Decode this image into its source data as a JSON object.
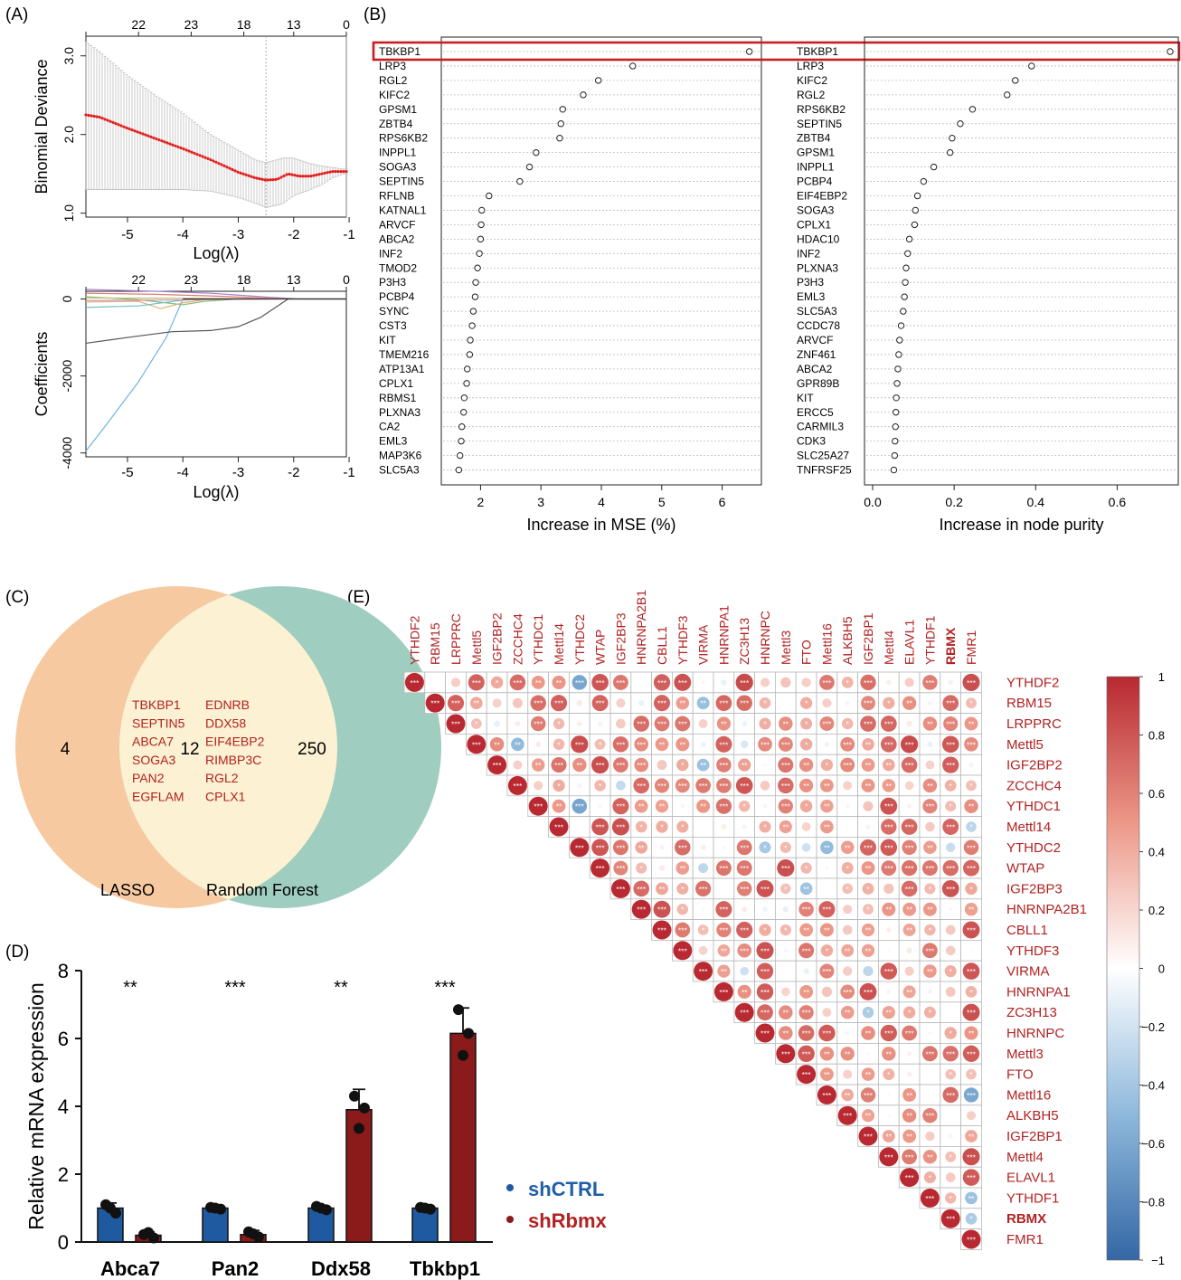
{
  "panel_labels": {
    "A": "(A)",
    "B": "(B)",
    "C": "(C)",
    "D": "(D)",
    "E": "(E)"
  },
  "colors": {
    "red": "#b22222",
    "blue": "#1f5fa6",
    "darkred": "#8b1a1a",
    "barblue": "#1f5aa0",
    "orange": "#f7c9a1",
    "green": "#9fcdbf",
    "overlap": "#fcf1d2",
    "gridgray": "#bbbbbb"
  },
  "chart_data": [
    {
      "id": "A1",
      "type": "line",
      "xlabel": "Log(λ)",
      "ylabel": "Binomial Deviance",
      "xlim": [
        -5.75,
        -1.05
      ],
      "ylim": [
        0.95,
        3.25
      ],
      "x_ticks": [
        "-5",
        "-4",
        "-3",
        "-2",
        "-1"
      ],
      "y_ticks": [
        "1.0",
        "2.0",
        "3.0"
      ],
      "top_ticks": [
        {
          "x": -5.75,
          "label": "22"
        },
        {
          "x": -4.8,
          "label": "22"
        },
        {
          "x": -3.85,
          "label": "23"
        },
        {
          "x": -2.9,
          "label": "18"
        },
        {
          "x": -2.0,
          "label": "13"
        },
        {
          "x": -1.05,
          "label": "0"
        }
      ],
      "vlines": [
        -2.5,
        -1.05
      ],
      "curve": [
        [
          -5.75,
          2.25
        ],
        [
          -5.5,
          2.22
        ],
        [
          -5.0,
          2.08
        ],
        [
          -4.5,
          1.95
        ],
        [
          -4.0,
          1.82
        ],
        [
          -3.5,
          1.68
        ],
        [
          -3.0,
          1.52
        ],
        [
          -2.7,
          1.45
        ],
        [
          -2.5,
          1.42
        ],
        [
          -2.3,
          1.43
        ],
        [
          -2.1,
          1.5
        ],
        [
          -1.9,
          1.47
        ],
        [
          -1.7,
          1.47
        ],
        [
          -1.5,
          1.5
        ],
        [
          -1.3,
          1.53
        ],
        [
          -1.1,
          1.53
        ]
      ],
      "upper": [
        [
          -5.75,
          3.18
        ],
        [
          -5.5,
          3.05
        ],
        [
          -5.0,
          2.75
        ],
        [
          -4.5,
          2.5
        ],
        [
          -4.0,
          2.27
        ],
        [
          -3.5,
          2.0
        ],
        [
          -3.0,
          1.8
        ],
        [
          -2.7,
          1.68
        ],
        [
          -2.5,
          1.64
        ],
        [
          -2.2,
          1.7
        ],
        [
          -2.0,
          1.7
        ],
        [
          -1.7,
          1.63
        ],
        [
          -1.5,
          1.6
        ],
        [
          -1.3,
          1.58
        ],
        [
          -1.1,
          1.56
        ]
      ],
      "lower": [
        [
          -5.75,
          1.3
        ],
        [
          -5.5,
          1.3
        ],
        [
          -5.0,
          1.3
        ],
        [
          -4.5,
          1.3
        ],
        [
          -4.0,
          1.3
        ],
        [
          -3.5,
          1.28
        ],
        [
          -3.0,
          1.2
        ],
        [
          -2.7,
          1.13
        ],
        [
          -2.5,
          1.07
        ],
        [
          -2.2,
          1.12
        ],
        [
          -2.0,
          1.22
        ],
        [
          -1.7,
          1.3
        ],
        [
          -1.5,
          1.36
        ],
        [
          -1.3,
          1.45
        ],
        [
          -1.1,
          1.5
        ]
      ]
    },
    {
      "id": "A2",
      "type": "line",
      "xlabel": "Log(λ)",
      "ylabel": "Coefficients",
      "xlim": [
        -5.75,
        -1.05
      ],
      "ylim": [
        -4100,
        200
      ],
      "x_ticks": [
        "-5",
        "-4",
        "-3",
        "-2",
        "-1"
      ],
      "y_ticks": [
        "0",
        "-2000",
        "-4000"
      ],
      "top_ticks": [
        {
          "x": -5.75,
          "label": "22"
        },
        {
          "x": -4.8,
          "label": "22"
        },
        {
          "x": -3.85,
          "label": "23"
        },
        {
          "x": -2.9,
          "label": "18"
        },
        {
          "x": -2.0,
          "label": "13"
        },
        {
          "x": -1.05,
          "label": "0"
        }
      ],
      "paths": [
        {
          "color": "#6cb4e0",
          "points": [
            [
              -5.75,
              -3950
            ],
            [
              -5.4,
              -3300
            ],
            [
              -4.8,
              -2150
            ],
            [
              -4.3,
              -1000
            ],
            [
              -4.0,
              0
            ]
          ]
        },
        {
          "color": "#555555",
          "points": [
            [
              -5.75,
              -1150
            ],
            [
              -5.0,
              -1000
            ],
            [
              -4.2,
              -850
            ],
            [
              -3.5,
              -820
            ],
            [
              -3.0,
              -720
            ],
            [
              -2.6,
              -480
            ],
            [
              -2.1,
              0
            ],
            [
              -1.05,
              0
            ]
          ]
        },
        {
          "color": "#a87fd0",
          "points": [
            [
              -5.75,
              250
            ],
            [
              -4.5,
              200
            ],
            [
              -3.5,
              150
            ],
            [
              -2.5,
              50
            ],
            [
              -1.9,
              0
            ],
            [
              -1.05,
              0
            ]
          ]
        },
        {
          "color": "#e07a7a",
          "points": [
            [
              -5.75,
              150
            ],
            [
              -4.5,
              120
            ],
            [
              -3.5,
              80
            ],
            [
              -2.5,
              20
            ],
            [
              -2.0,
              0
            ]
          ]
        },
        {
          "color": "#7fc07f",
          "points": [
            [
              -5.75,
              60
            ],
            [
              -4.8,
              -20
            ],
            [
              -4.0,
              -150
            ],
            [
              -3.6,
              -60
            ],
            [
              -3.0,
              0
            ]
          ]
        },
        {
          "color": "#e0b070",
          "points": [
            [
              -5.75,
              -80
            ],
            [
              -4.8,
              -60
            ],
            [
              -4.4,
              -250
            ],
            [
              -4.0,
              -100
            ],
            [
              -3.5,
              0
            ]
          ]
        },
        {
          "color": "#70c0c0",
          "points": [
            [
              -5.75,
              -220
            ],
            [
              -4.8,
              -180
            ],
            [
              -4.0,
              -30
            ],
            [
              -3.5,
              0
            ]
          ]
        },
        {
          "color": "#c0c060",
          "points": [
            [
              -5.75,
              30
            ],
            [
              -4.5,
              20
            ],
            [
              -3.0,
              10
            ],
            [
              -2.2,
              0
            ]
          ]
        },
        {
          "color": "#d090c0",
          "points": [
            [
              -5.75,
              -40
            ],
            [
              -4.5,
              -30
            ],
            [
              -3.0,
              -10
            ],
            [
              -2.3,
              0
            ]
          ]
        }
      ]
    },
    {
      "id": "B1",
      "type": "scatter",
      "xlabel": "Increase in MSE (%)",
      "xlim": [
        1.35,
        6.65
      ],
      "x_ticks": [
        2,
        3,
        4,
        5,
        6
      ],
      "categories": [
        "TBKBP1",
        "LRP3",
        "RGL2",
        "KIFC2",
        "GPSM1",
        "ZBTB4",
        "RPS6KB2",
        "INPPL1",
        "SOGA3",
        "SEPTIN5",
        "RFLNB",
        "KATNAL1",
        "ARVCF",
        "ABCA2",
        "INF2",
        "TMOD2",
        "P3H3",
        "PCBP4",
        "SYNC",
        "CST3",
        "KIT",
        "TMEM216",
        "ATP13A1",
        "CPLX1",
        "RBMS1",
        "PLXNA3",
        "CA2",
        "EML3",
        "MAP3K6",
        "SLC5A3"
      ],
      "values": [
        6.45,
        4.52,
        3.95,
        3.7,
        3.36,
        3.33,
        3.31,
        2.92,
        2.81,
        2.65,
        2.14,
        2.02,
        2.01,
        2.0,
        1.98,
        1.95,
        1.92,
        1.91,
        1.88,
        1.86,
        1.83,
        1.82,
        1.78,
        1.77,
        1.73,
        1.72,
        1.69,
        1.68,
        1.66,
        1.64
      ]
    },
    {
      "id": "B2",
      "type": "scatter",
      "xlabel": "Increase in node purity",
      "xlim": [
        -0.02,
        0.75
      ],
      "x_ticks": [
        "0.0",
        "0.2",
        "0.4",
        "0.6"
      ],
      "x_tick_values": [
        0,
        0.2,
        0.4,
        0.6
      ],
      "categories": [
        "TBKBP1",
        "LRP3",
        "KIFC2",
        "RGL2",
        "RPS6KB2",
        "SEPTIN5",
        "ZBTB4",
        "GPSM1",
        "INPPL1",
        "PCBP4",
        "EIF4EBP2",
        "SOGA3",
        "CPLX1",
        "HDAC10",
        "INF2",
        "PLXNA3",
        "P3H3",
        "EML3",
        "SLC5A3",
        "CCDC78",
        "ARVCF",
        "ZNF461",
        "ABCA2",
        "GPR89B",
        "KIT",
        "ERCC5",
        "CARMIL3",
        "CDK3",
        "SLC25A27",
        "TNFRSF25"
      ],
      "values": [
        0.73,
        0.39,
        0.35,
        0.33,
        0.245,
        0.215,
        0.195,
        0.19,
        0.15,
        0.125,
        0.11,
        0.105,
        0.103,
        0.09,
        0.086,
        0.082,
        0.08,
        0.078,
        0.075,
        0.07,
        0.066,
        0.064,
        0.062,
        0.06,
        0.058,
        0.057,
        0.056,
        0.055,
        0.054,
        0.052
      ]
    },
    {
      "id": "C",
      "type": "venn",
      "sets": [
        {
          "name": "LASSO",
          "only": "4"
        },
        {
          "name": "Random Forest",
          "only": "250"
        }
      ],
      "overlap_count": "12",
      "overlap_genes_left": [
        "TBKBP1",
        "SEPTIN5",
        "ABCA7",
        "SOGA3",
        "PAN2",
        "EGFLAM"
      ],
      "overlap_genes_right": [
        "EDNRB",
        "DDX58",
        "EIF4EBP2",
        "RIMBP3C",
        "RGL2",
        "CPLX1"
      ]
    },
    {
      "id": "D",
      "type": "bar",
      "ylabel": "Relative mRNA expression",
      "ylim": [
        0,
        8
      ],
      "y_ticks": [
        "0",
        "2",
        "4",
        "6",
        "8"
      ],
      "categories": [
        "Abca7",
        "Pan2",
        "Ddx58",
        "Tbkbp1"
      ],
      "significance": [
        "**",
        "***",
        "**",
        "***"
      ],
      "series": [
        {
          "name": "shCTRL",
          "values": [
            1.0,
            1.0,
            1.0,
            1.0
          ],
          "err": [
            0.15,
            0.05,
            0.08,
            0.05
          ],
          "points": [
            [
              1.1,
              0.85,
              1.0
            ],
            [
              1.02,
              0.97,
              1.0
            ],
            [
              1.05,
              0.95,
              1.0
            ],
            [
              1.02,
              0.97,
              1.0
            ]
          ]
        },
        {
          "name": "shRbmx",
          "values": [
            0.2,
            0.22,
            3.9,
            6.15
          ],
          "err": [
            0.1,
            0.12,
            0.6,
            0.75
          ],
          "points": [
            [
              0.22,
              0.12,
              0.28
            ],
            [
              0.3,
              0.15,
              0.24
            ],
            [
              4.3,
              3.95,
              3.35
            ],
            [
              6.85,
              6.15,
              5.5
            ]
          ]
        }
      ]
    },
    {
      "id": "E",
      "type": "heatmap",
      "labels": [
        "YTHDF2",
        "RBM15",
        "LRPPRC",
        "Mettl5",
        "IGF2BP2",
        "ZCCHC4",
        "YTHDC1",
        "Mettl14",
        "YTHDC2",
        "WTAP",
        "IGF2BP3",
        "HNRNPA2B1",
        "CBLL1",
        "YTHDF3",
        "VIRMA",
        "HNRNPA1",
        "ZC3H13",
        "HNRNPC",
        "Mettl3",
        "FTO",
        "Mettl16",
        "ALKBH5",
        "IGF2BP1",
        "Mettl4",
        "ELAVL1",
        "YTHDF1",
        "RBMX",
        "FMR1"
      ],
      "bold_label": "RBMX",
      "colorbar_ticks": [
        "1",
        "0.8",
        "0.6",
        "0.4",
        "0.2",
        "0",
        "−0.2",
        "−0.4",
        "−0.6",
        "−0.8",
        "−1"
      ],
      "colorbar_values": [
        1,
        0.8,
        0.6,
        0.4,
        0.2,
        0,
        -0.2,
        -0.4,
        -0.6,
        -0.8,
        -1
      ]
    }
  ]
}
